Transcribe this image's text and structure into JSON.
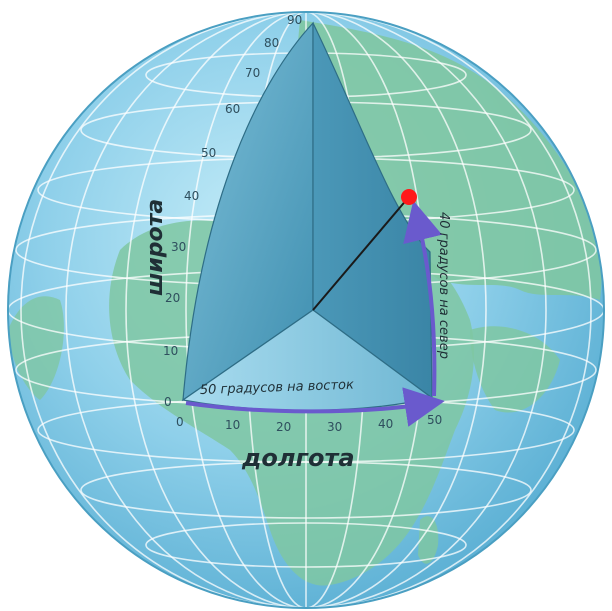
{
  "diagram": {
    "latitude_word": "широта",
    "longitude_word": "долгота",
    "east_label": "50 градусов на восток",
    "north_label": "40 градусов на север",
    "latitude_ticks": [
      "0",
      "10",
      "20",
      "30",
      "40",
      "50",
      "60",
      "70",
      "80",
      "90"
    ],
    "longitude_ticks": [
      "0",
      "10",
      "20",
      "30",
      "40",
      "50"
    ],
    "colors": {
      "ocean": "#8fd0ea",
      "land": "#7fc7a2",
      "grid": "#ffffff",
      "wedge": "#5da8c4",
      "arrow": "#6a5acd",
      "point": "#ff1a1a"
    }
  }
}
